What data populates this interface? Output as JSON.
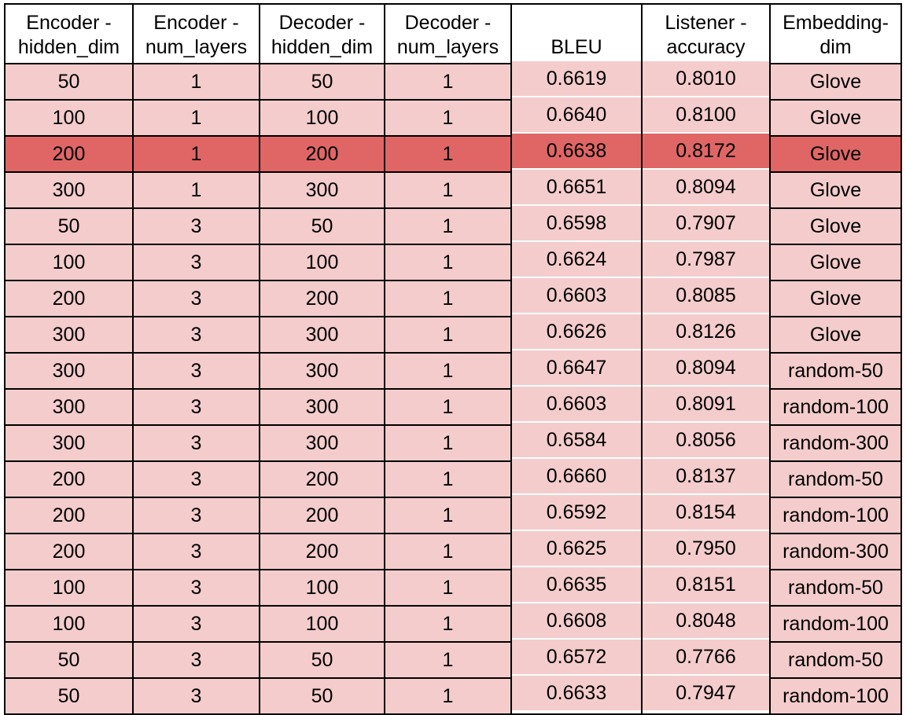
{
  "columns": [
    "Encoder -\nhidden_dim",
    "Encoder -\nnum_layers",
    "Decoder -\nhidden_dim",
    "Decoder -\nnum_layers",
    "BLEU",
    "Listener -\naccuracy",
    "Embedding-\ndim"
  ],
  "highlight_row": 2,
  "colors": {
    "row_fill": "#f4cccc",
    "highlight_fill": "#e06666",
    "header_fill": "#ffffff",
    "border": "#000000"
  },
  "rows": [
    [
      "50",
      "1",
      "50",
      "1",
      "0.6619",
      "0.8010",
      "Glove"
    ],
    [
      "100",
      "1",
      "100",
      "1",
      "0.6640",
      "0.8100",
      "Glove"
    ],
    [
      "200",
      "1",
      "200",
      "1",
      "0.6638",
      "0.8172",
      "Glove"
    ],
    [
      "300",
      "1",
      "300",
      "1",
      "0.6651",
      "0.8094",
      "Glove"
    ],
    [
      "50",
      "3",
      "50",
      "1",
      "0.6598",
      "0.7907",
      "Glove"
    ],
    [
      "100",
      "3",
      "100",
      "1",
      "0.6624",
      "0.7987",
      "Glove"
    ],
    [
      "200",
      "3",
      "200",
      "1",
      "0.6603",
      "0.8085",
      "Glove"
    ],
    [
      "300",
      "3",
      "300",
      "1",
      "0.6626",
      "0.8126",
      "Glove"
    ],
    [
      "300",
      "3",
      "300",
      "1",
      "0.6647",
      "0.8094",
      "random-50"
    ],
    [
      "300",
      "3",
      "300",
      "1",
      "0.6603",
      "0.8091",
      "random-100"
    ],
    [
      "300",
      "3",
      "300",
      "1",
      "0.6584",
      "0.8056",
      "random-300"
    ],
    [
      "200",
      "3",
      "200",
      "1",
      "0.6660",
      "0.8137",
      "random-50"
    ],
    [
      "200",
      "3",
      "200",
      "1",
      "0.6592",
      "0.8154",
      "random-100"
    ],
    [
      "200",
      "3",
      "200",
      "1",
      "0.6625",
      "0.7950",
      "random-300"
    ],
    [
      "100",
      "3",
      "100",
      "1",
      "0.6635",
      "0.8151",
      "random-50"
    ],
    [
      "100",
      "3",
      "100",
      "1",
      "0.6608",
      "0.8048",
      "random-100"
    ],
    [
      "50",
      "3",
      "50",
      "1",
      "0.6572",
      "0.7766",
      "random-50"
    ],
    [
      "50",
      "3",
      "50",
      "1",
      "0.6633",
      "0.7947",
      "random-100"
    ]
  ]
}
